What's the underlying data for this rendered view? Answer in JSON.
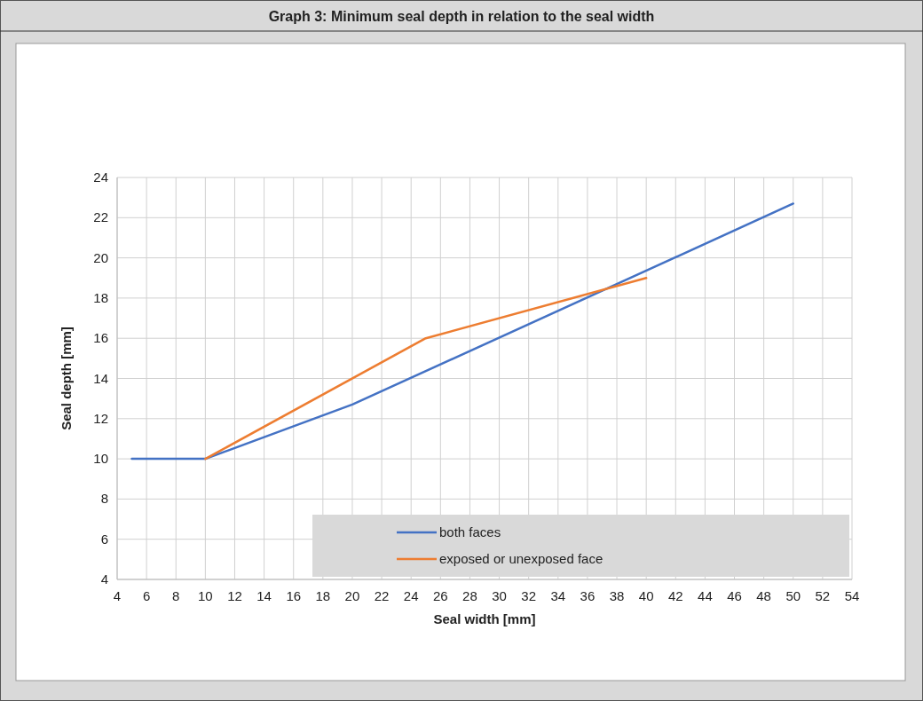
{
  "chart_data": {
    "type": "line",
    "title": "Graph 3: Minimum seal depth in relation to the seal width",
    "xlabel": "Seal width [mm]",
    "ylabel": "Seal depth [mm]",
    "xlim": [
      4,
      54
    ],
    "xticks": [
      4,
      6,
      8,
      10,
      12,
      14,
      16,
      18,
      20,
      22,
      24,
      26,
      28,
      30,
      32,
      34,
      36,
      38,
      40,
      42,
      44,
      46,
      48,
      50,
      52,
      54
    ],
    "ylim": [
      4,
      24
    ],
    "yticks": [
      4,
      6,
      8,
      10,
      12,
      14,
      16,
      18,
      20,
      22,
      24
    ],
    "grid": true,
    "legend": "bottom right",
    "line_style": "solid",
    "series": [
      {
        "name": "both faces",
        "color": "#4472c4",
        "x": [
          5,
          10,
          20,
          50
        ],
        "values": [
          10,
          10,
          12.7,
          22.7
        ]
      },
      {
        "name": "exposed or unexposed face",
        "color": "#ed7d31",
        "x": [
          10,
          25,
          40
        ],
        "values": [
          10,
          16,
          19
        ]
      }
    ]
  }
}
